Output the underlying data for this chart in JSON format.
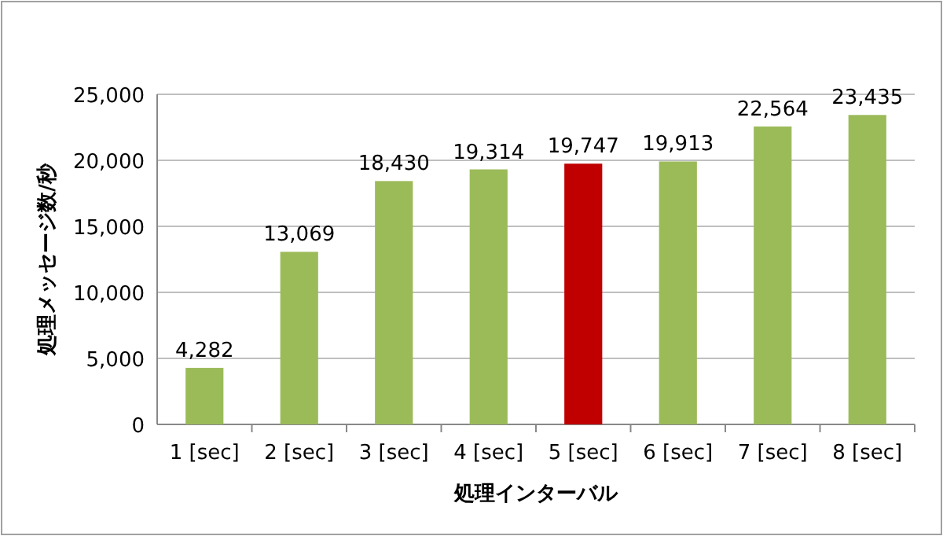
{
  "chart_data": {
    "type": "bar",
    "xlabel": "処理インターバル",
    "ylabel": "処理メッセージ数/秒",
    "categories": [
      "1 [sec]",
      "2 [sec]",
      "3 [sec]",
      "4 [sec]",
      "5 [sec]",
      "6 [sec]",
      "7 [sec]",
      "8 [sec]"
    ],
    "values": [
      4282,
      13069,
      18430,
      19314,
      19747,
      19913,
      22564,
      23435
    ],
    "colors": [
      "#9bbb59",
      "#9bbb59",
      "#9bbb59",
      "#9bbb59",
      "#c00000",
      "#9bbb59",
      "#9bbb59",
      "#9bbb59"
    ],
    "ylim": [
      0,
      25000
    ],
    "yticks": [
      {
        "value": 0,
        "label": "0"
      },
      {
        "value": 5000,
        "label": "5,000"
      },
      {
        "value": 10000,
        "label": "10,000"
      },
      {
        "value": 15000,
        "label": "15,000"
      },
      {
        "value": 20000,
        "label": "20,000"
      },
      {
        "value": 25000,
        "label": "25,000"
      }
    ],
    "value_labels": [
      "4,282",
      "13,069",
      "18,430",
      "19,314",
      "19,747",
      "19,913",
      "22,564",
      "23,435"
    ],
    "grid": "y"
  }
}
